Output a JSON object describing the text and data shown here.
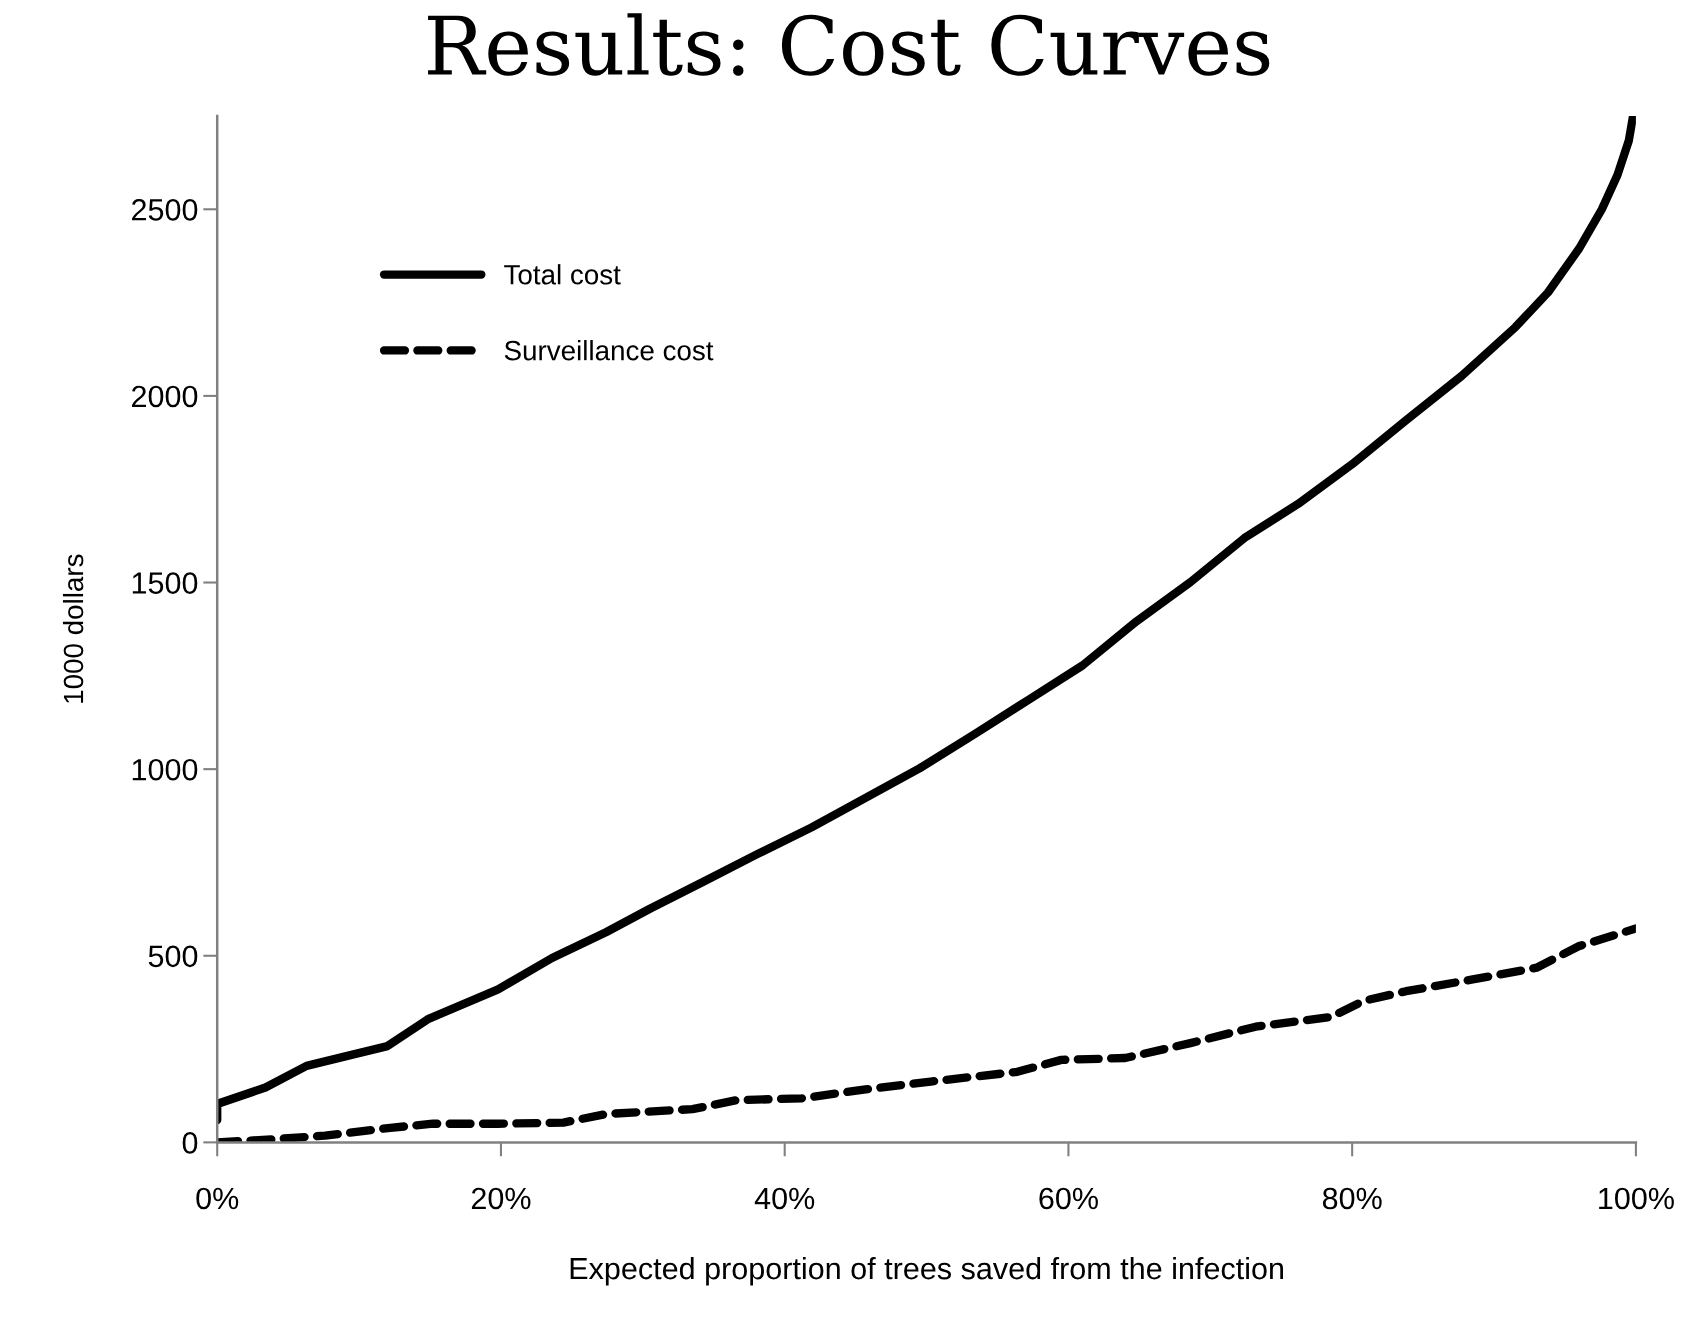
{
  "chart_data": {
    "type": "line",
    "title": "Results: Cost Curves",
    "xlabel": "Expected proportion of trees saved from the infection",
    "ylabel": "1000 dollars",
    "xlim": [
      0,
      100
    ],
    "xticks": [
      {
        "value": 0,
        "label": "0%"
      },
      {
        "value": 20,
        "label": "20%"
      },
      {
        "value": 40,
        "label": "40%"
      },
      {
        "value": 60,
        "label": "60%"
      },
      {
        "value": 80,
        "label": "80%"
      },
      {
        "value": 100,
        "label": "100%"
      }
    ],
    "ylim": [
      0,
      2750
    ],
    "yticks": [
      0,
      500,
      1000,
      1500,
      2000,
      2500
    ],
    "grid": false,
    "legend": "top left",
    "series": [
      {
        "name": "Total cost",
        "color": "#000000",
        "line_style": "solid",
        "x": [
          0,
          0,
          3.4,
          6.3,
          9.1,
          12.0,
          14.9,
          19.8,
          23.6,
          27.4,
          30.5,
          34.3,
          38.1,
          41.9,
          45.7,
          49.5,
          53.4,
          57.2,
          61.0,
          64.8,
          68.6,
          72.4,
          76.2,
          80.0,
          83.8,
          87.7,
          91.5,
          93.8,
          96.0,
          97.6,
          98.7,
          99.5,
          99.8
        ],
        "values": [
          60,
          103,
          147,
          205,
          231,
          258,
          331,
          410,
          494,
          563,
          626,
          699,
          773,
          844,
          923,
          1002,
          1094,
          1186,
          1278,
          1396,
          1501,
          1619,
          1711,
          1817,
          1935,
          2053,
          2184,
          2277,
          2395,
          2500,
          2592,
          2684,
          2750
        ]
      },
      {
        "name": "Surveillance cost",
        "color": "#000000",
        "line_style": "dashed",
        "x": [
          0,
          3.8,
          7.6,
          12.2,
          15.2,
          19.8,
          24.4,
          27.4,
          33.5,
          36.6,
          41.2,
          45.7,
          50.3,
          56.4,
          59.5,
          64.0,
          68.6,
          73.2,
          78.5,
          80.8,
          83.8,
          88.4,
          93.0,
          96.0,
          100
        ],
        "values": [
          0,
          8,
          18,
          39,
          50,
          50,
          53,
          76,
          89,
          113,
          118,
          142,
          163,
          189,
          221,
          226,
          266,
          310,
          336,
          379,
          405,
          436,
          468,
          526,
          573
        ]
      }
    ]
  }
}
